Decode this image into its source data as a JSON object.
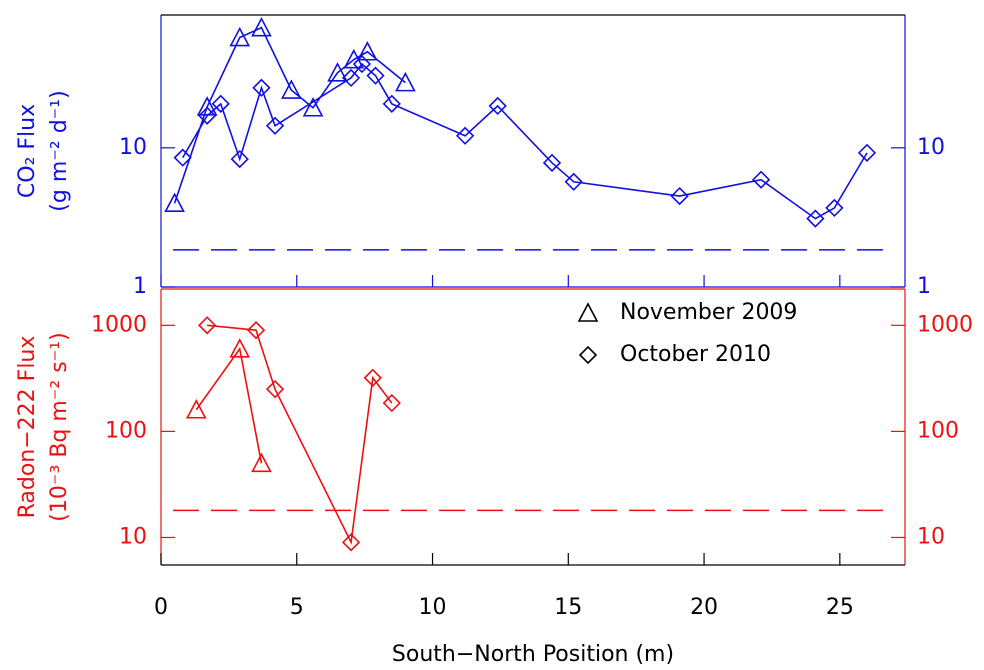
{
  "chart_data": [
    {
      "type": "line",
      "color": "#1010e0",
      "log_y": true,
      "ylabel": [
        "CO₂ Flux",
        "(g m⁻² d⁻¹)"
      ],
      "xlim": [
        0,
        27.4
      ],
      "xticks": [
        0,
        5,
        10,
        15,
        20,
        25
      ],
      "ylim": [
        1,
        90
      ],
      "yticks": [
        1,
        10
      ],
      "hline": 1.85,
      "series": [
        {
          "marker": "triangle",
          "x": [
            0.5,
            1.7,
            2.9,
            3.7,
            4.8,
            5.6,
            6.5,
            7.1,
            7.6,
            9.0
          ],
          "values": [
            4.0,
            19.7,
            62,
            73,
            26,
            19.4,
            34.6,
            43,
            49,
            29.4
          ]
        },
        {
          "marker": "diamond",
          "x": [
            0.8,
            1.7,
            2.2,
            2.9,
            3.7,
            4.2,
            7.0,
            7.4,
            7.9,
            8.5,
            11.2,
            12.4,
            14.4,
            15.2,
            19.1,
            22.1,
            24.1,
            24.8,
            26.0
          ],
          "values": [
            8.5,
            17,
            20.7,
            8.3,
            27,
            14.4,
            31.8,
            40,
            33,
            20.7,
            12.2,
            20,
            7.8,
            5.7,
            4.5,
            5.9,
            3.1,
            3.7,
            9.2
          ]
        }
      ]
    },
    {
      "type": "line",
      "color": "#ee1010",
      "log_y": true,
      "ylabel": [
        "Radon−222 Flux",
        "(10⁻³ Bq m⁻² s⁻¹)"
      ],
      "xlabel": "South−North Position (m)",
      "xlim": [
        0,
        27.4
      ],
      "xticks": [
        0,
        5,
        10,
        15,
        20,
        25
      ],
      "ylim": [
        5.5,
        2200
      ],
      "yticks": [
        10,
        100,
        1000
      ],
      "hline": 18,
      "legend": "upper right",
      "series": [
        {
          "name": "November 2009",
          "marker": "triangle",
          "x": [
            1.3,
            2.9,
            3.7
          ],
          "values": [
            160,
            600,
            50
          ]
        },
        {
          "name": "October 2010",
          "marker": "diamond",
          "x": [
            1.7,
            3.5,
            4.2,
            7.0,
            7.8,
            8.5
          ],
          "values": [
            1000,
            900,
            250,
            9,
            320,
            185
          ]
        }
      ]
    }
  ]
}
